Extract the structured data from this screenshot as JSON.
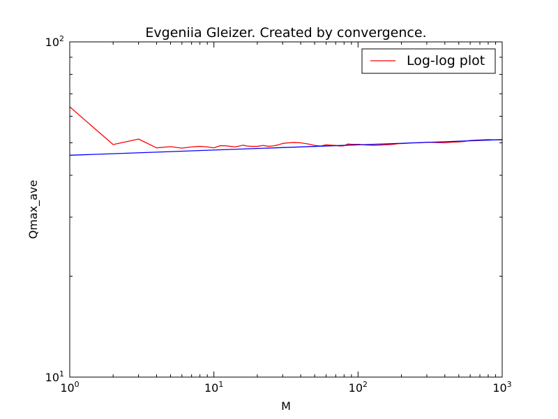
{
  "chart_data": {
    "type": "line",
    "title": "Evgeniia Gleizer. Created by convergence.",
    "xlabel": "M",
    "ylabel": "Qmax_ave",
    "xscale": "log",
    "yscale": "log",
    "xlim": [
      1,
      1000
    ],
    "ylim": [
      10,
      100
    ],
    "grid": false,
    "legend_position": "top-right",
    "x_ticks": [
      {
        "base": "10",
        "exp": "0",
        "value": 1
      },
      {
        "base": "10",
        "exp": "1",
        "value": 10
      },
      {
        "base": "10",
        "exp": "2",
        "value": 100
      },
      {
        "base": "10",
        "exp": "3",
        "value": 1000
      }
    ],
    "y_ticks": [
      {
        "base": "10",
        "exp": "1",
        "value": 10
      },
      {
        "base": "10",
        "exp": "2",
        "value": 100
      }
    ],
    "series": [
      {
        "name": "Log-log plot",
        "color": "#ff0000",
        "points": [
          [
            1,
            64.0
          ],
          [
            2,
            49.4
          ],
          [
            3,
            51.3
          ],
          [
            4,
            48.3
          ],
          [
            5,
            48.7
          ],
          [
            6,
            48.2
          ],
          [
            7,
            48.6
          ],
          [
            8,
            48.8
          ],
          [
            9,
            48.6
          ],
          [
            10,
            48.3
          ],
          [
            11,
            49.0
          ],
          [
            12,
            49.0
          ],
          [
            13,
            48.8
          ],
          [
            14,
            48.6
          ],
          [
            15,
            48.9
          ],
          [
            16,
            49.2
          ],
          [
            17,
            48.9
          ],
          [
            18,
            48.8
          ],
          [
            20,
            48.8
          ],
          [
            22,
            49.1
          ],
          [
            24,
            48.8
          ],
          [
            26,
            49.0
          ],
          [
            28,
            49.3
          ],
          [
            30,
            49.8
          ],
          [
            33,
            50.0
          ],
          [
            36,
            50.1
          ],
          [
            40,
            50.0
          ],
          [
            45,
            49.6
          ],
          [
            50,
            49.1
          ],
          [
            55,
            48.9
          ],
          [
            60,
            49.3
          ],
          [
            65,
            49.2
          ],
          [
            70,
            49.1
          ],
          [
            75,
            48.9
          ],
          [
            80,
            49.0
          ],
          [
            85,
            49.6
          ],
          [
            90,
            49.5
          ],
          [
            100,
            49.5
          ],
          [
            110,
            49.3
          ],
          [
            120,
            49.2
          ],
          [
            130,
            49.1
          ],
          [
            140,
            49.2
          ],
          [
            150,
            49.3
          ],
          [
            170,
            49.4
          ],
          [
            190,
            49.7
          ],
          [
            210,
            49.8
          ],
          [
            240,
            50.0
          ],
          [
            270,
            50.0
          ],
          [
            300,
            50.2
          ],
          [
            350,
            50.1
          ],
          [
            400,
            50.0
          ],
          [
            450,
            50.2
          ],
          [
            500,
            50.3
          ],
          [
            550,
            50.5
          ],
          [
            600,
            50.8
          ],
          [
            700,
            51.0
          ],
          [
            800,
            51.1
          ],
          [
            900,
            51.0
          ],
          [
            1000,
            51.0
          ]
        ]
      },
      {
        "name": "",
        "color": "#0000ff",
        "points": [
          [
            1,
            45.9
          ],
          [
            1000,
            51.1
          ]
        ]
      }
    ]
  }
}
